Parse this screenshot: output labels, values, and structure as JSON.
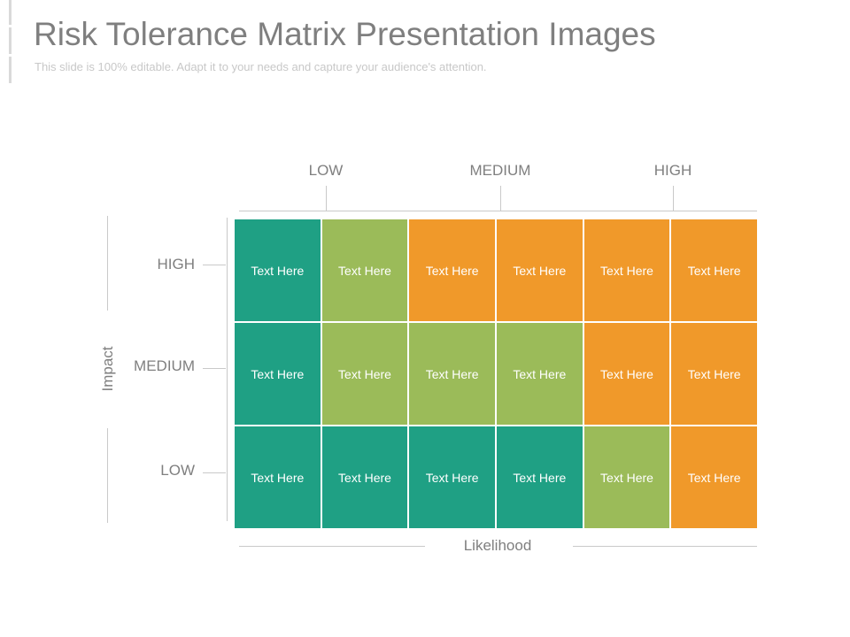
{
  "slide": {
    "title": "Risk Tolerance Matrix Presentation Images",
    "subtitle": "This slide is 100% editable. Adapt it to your needs and capture your audience's attention."
  },
  "colors": {
    "teal": "#1fa084",
    "green": "#9bbb59",
    "orange": "#f0992a"
  },
  "columns": {
    "labels": [
      "LOW",
      "MEDIUM",
      "HIGH"
    ]
  },
  "rows": {
    "axis_label": "Impact",
    "labels": [
      "HIGH",
      "MEDIUM",
      "LOW"
    ]
  },
  "xaxis": {
    "label": "Likelihood"
  },
  "matrix": {
    "rows": [
      [
        {
          "text": "Text Here",
          "color": "teal"
        },
        {
          "text": "Text Here",
          "color": "green"
        },
        {
          "text": "Text Here",
          "color": "orange"
        },
        {
          "text": "Text Here",
          "color": "orange"
        },
        {
          "text": "Text Here",
          "color": "orange"
        },
        {
          "text": "Text Here",
          "color": "orange"
        }
      ],
      [
        {
          "text": "Text Here",
          "color": "teal"
        },
        {
          "text": "Text Here",
          "color": "green"
        },
        {
          "text": "Text Here",
          "color": "green"
        },
        {
          "text": "Text Here",
          "color": "green"
        },
        {
          "text": "Text Here",
          "color": "orange"
        },
        {
          "text": "Text Here",
          "color": "orange"
        }
      ],
      [
        {
          "text": "Text Here",
          "color": "teal"
        },
        {
          "text": "Text Here",
          "color": "teal"
        },
        {
          "text": "Text Here",
          "color": "teal"
        },
        {
          "text": "Text Here",
          "color": "teal"
        },
        {
          "text": "Text Here",
          "color": "green"
        },
        {
          "text": "Text Here",
          "color": "orange"
        }
      ]
    ]
  }
}
